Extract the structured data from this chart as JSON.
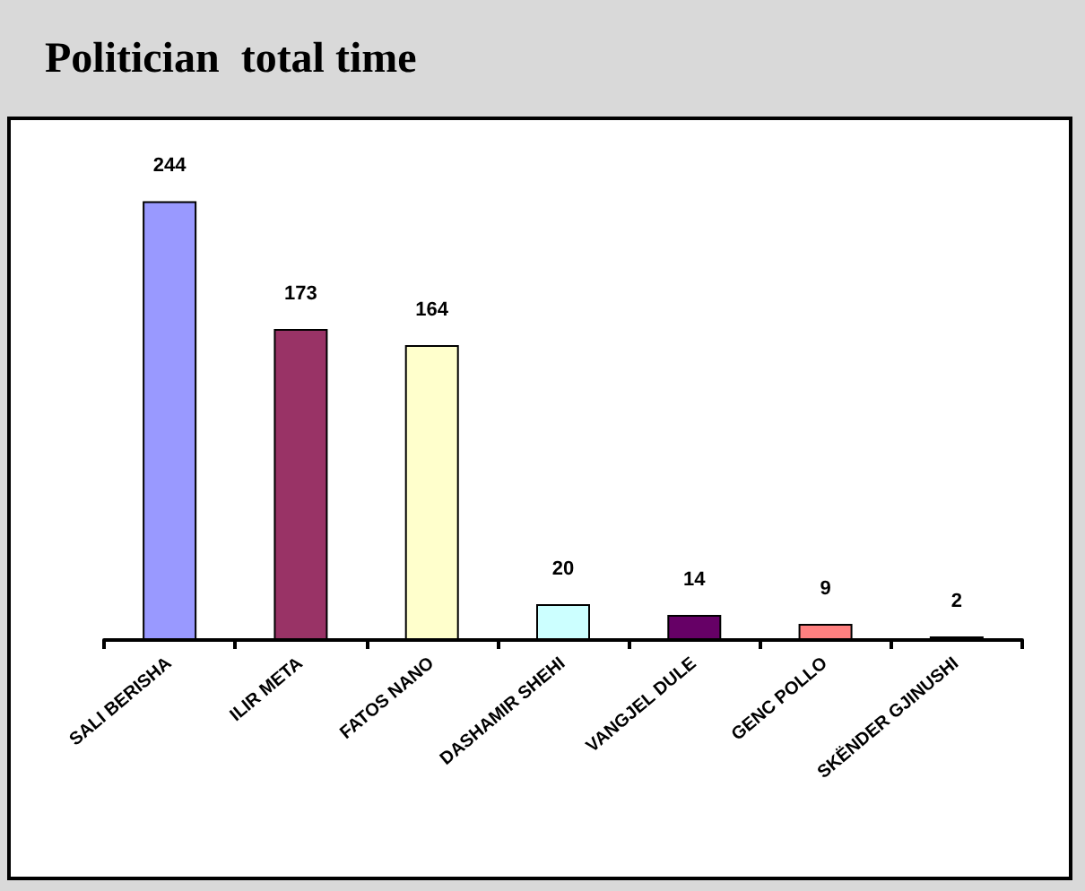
{
  "chart_data": {
    "type": "bar",
    "title": "Politician  total time",
    "categories": [
      "SALI BERISHA",
      "ILIR META",
      "FATOS NANO",
      "DASHAMIR SHEHI",
      "VANGJEL DULE",
      "GENC POLLO",
      "SKËNDER GJINUSHI"
    ],
    "values": [
      244,
      173,
      164,
      20,
      14,
      9,
      2
    ],
    "colors": [
      "#9999ff",
      "#993366",
      "#ffffcc",
      "#ccffff",
      "#660066",
      "#ff8080",
      "#000000"
    ],
    "data_labels": true
  }
}
